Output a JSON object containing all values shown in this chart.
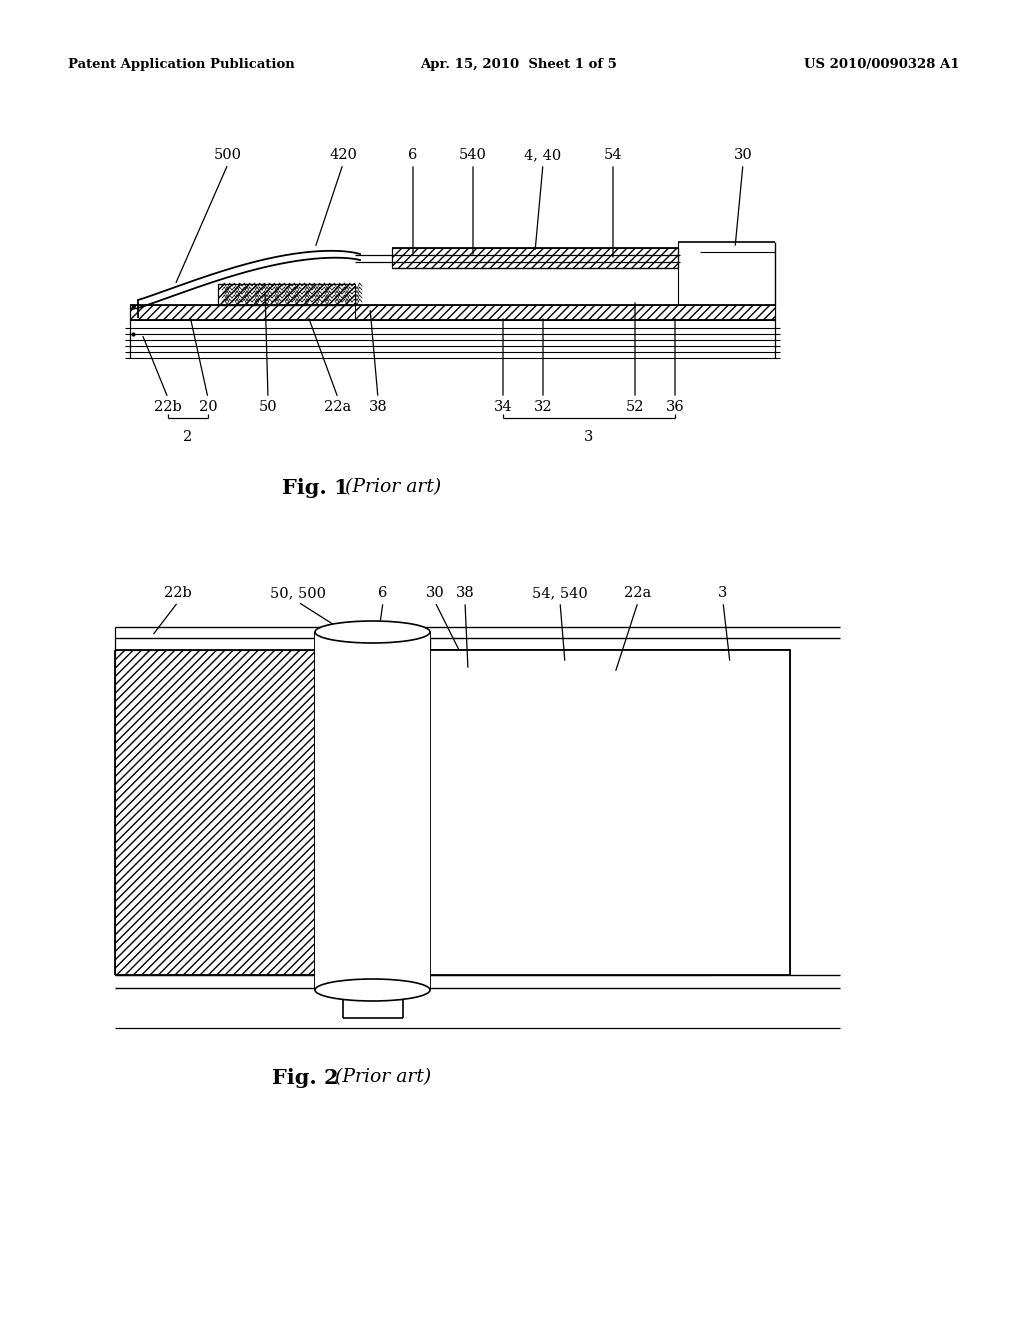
{
  "header_left": "Patent Application Publication",
  "header_center": "Apr. 15, 2010  Sheet 1 of 5",
  "header_right": "US 2010/0090328 A1",
  "background_color": "#ffffff"
}
